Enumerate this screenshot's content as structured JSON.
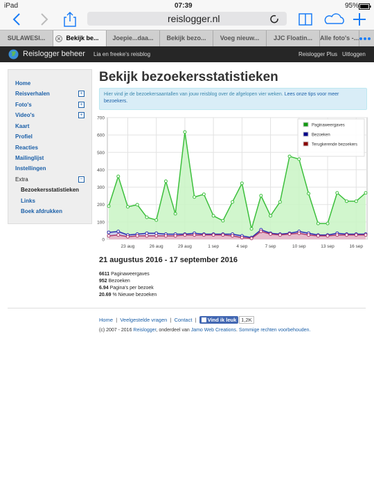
{
  "status_bar": {
    "device": "iPad",
    "time": "07:39",
    "battery": "95%"
  },
  "toolbar": {
    "url": "reislogger.nl"
  },
  "tabs": [
    "SULAWESI...",
    "Bekijk be...",
    "Joepie...daa...",
    "Bekijk bezo...",
    "Voeg nieuw...",
    "JJC Floatin...",
    "Alle foto's -..."
  ],
  "site_header": {
    "brand": "Reislogger beheer",
    "blog": "Lia en freeke's reisblog",
    "plus": "Reislogger Plus",
    "logout": "Uitloggen"
  },
  "sidebar": {
    "items": [
      "Home",
      "Reisverhalen",
      "Foto's",
      "Video's",
      "Kaart",
      "Profiel",
      "Reacties",
      "Mailinglijst",
      "Instellingen",
      "Extra",
      "Bezoekersstatistieken",
      "Links",
      "Boek afdrukken"
    ]
  },
  "main": {
    "title": "Bekijk bezoekersstatistieken",
    "info": "Hier vind je de bezoekersaantallen van jouw reisblog over de afgelopen vier weken. ",
    "info_link": "Lees onze tips voor meer bezoekers.",
    "period": "21 augustus 2016 - 17 september 2016",
    "stats": [
      {
        "number": "6611",
        "label": "Paginaweergaves"
      },
      {
        "number": "952",
        "label": "Bezoeken"
      },
      {
        "number": "6.94",
        "label": "Pagina's per bezoek"
      },
      {
        "number": "20.69",
        "label": "% Nieuwe bezoeken"
      }
    ]
  },
  "footer": {
    "links": [
      "Home",
      "Veelgestelde vragen",
      "Contact"
    ],
    "separator": "|",
    "like": "Vind ik leuk",
    "like_count": "1,2K",
    "copyright": "(c) 2007 - 2016 ",
    "brand_link": "Reislogger",
    "part_of": ", onderdeel van ",
    "company_link": "Jamo Web Creations",
    "period": ". ",
    "rights_link": "Sommige rechten voorbehouden."
  },
  "chart_data": {
    "type": "line",
    "categories": [
      null,
      null,
      "23 aug",
      null,
      null,
      "26 aug",
      null,
      null,
      "29 aug",
      null,
      null,
      "1 sep",
      null,
      null,
      "4 sep",
      null,
      null,
      "7 sep",
      null,
      null,
      "10 sep",
      null,
      null,
      "13 sep",
      null,
      null,
      "16 sep",
      null
    ],
    "series": [
      {
        "name": "Paginaweergaves",
        "color": "#3cbf3c",
        "fill": "#c9f5c4",
        "legend_color": "#119911",
        "values": [
          191,
          362,
          187,
          199,
          127,
          111,
          334,
          147,
          617,
          243,
          259,
          135,
          107,
          215,
          322,
          60,
          251,
          135,
          215,
          477,
          461,
          263,
          91,
          91,
          267,
          219,
          219,
          267
        ]
      },
      {
        "name": "Bezoeken",
        "color": "#2b2bb0",
        "fill": "#c6c6ef",
        "legend_color": "#000088",
        "values": [
          40,
          45,
          25,
          30,
          35,
          35,
          30,
          30,
          30,
          35,
          30,
          30,
          30,
          30,
          20,
          10,
          55,
          35,
          30,
          35,
          45,
          35,
          25,
          25,
          35,
          30,
          30,
          30
        ]
      },
      {
        "name": "Terugkerende bezoekers",
        "color": "#b03a6a",
        "fill": "#eab7c6",
        "legend_color": "#880000",
        "values": [
          20,
          25,
          15,
          20,
          20,
          20,
          20,
          20,
          25,
          25,
          25,
          25,
          25,
          20,
          10,
          5,
          45,
          30,
          25,
          30,
          35,
          25,
          20,
          20,
          25,
          25,
          25,
          25
        ]
      }
    ],
    "ylim": [
      0,
      700
    ],
    "yticks": [
      0,
      100,
      200,
      300,
      400,
      500,
      600,
      700
    ],
    "grid": true,
    "legend": "upper right"
  }
}
